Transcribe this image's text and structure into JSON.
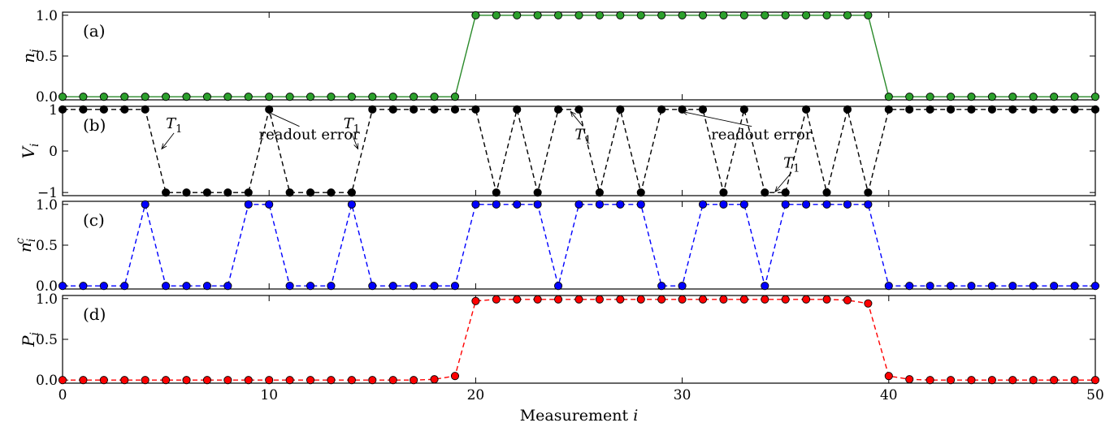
{
  "figure": {
    "xlabel": "Measurement i",
    "xlim": [
      0,
      50
    ],
    "xticks": [
      0,
      10,
      20,
      30,
      40,
      50
    ],
    "annotation_arrow_color": "#000000"
  },
  "chart_data": [
    {
      "type": "line",
      "panel_label": "(a)",
      "ylabel": "n_i",
      "ylim": [
        0,
        1
      ],
      "yticks": [
        0.0,
        0.5,
        1.0
      ],
      "ytick_labels": [
        "0.0",
        "0.5",
        "1.0"
      ],
      "line_style": "solid",
      "color": "#2a8a2a",
      "marker_color": "#2ca02c",
      "x": [
        0,
        1,
        2,
        3,
        4,
        5,
        6,
        7,
        8,
        9,
        10,
        11,
        12,
        13,
        14,
        15,
        16,
        17,
        18,
        19,
        20,
        21,
        22,
        23,
        24,
        25,
        26,
        27,
        28,
        29,
        30,
        31,
        32,
        33,
        34,
        35,
        36,
        37,
        38,
        39,
        40,
        41,
        42,
        43,
        44,
        45,
        46,
        47,
        48,
        49,
        50
      ],
      "values": [
        0,
        0,
        0,
        0,
        0,
        0,
        0,
        0,
        0,
        0,
        0,
        0,
        0,
        0,
        0,
        0,
        0,
        0,
        0,
        0,
        1,
        1,
        1,
        1,
        1,
        1,
        1,
        1,
        1,
        1,
        1,
        1,
        1,
        1,
        1,
        1,
        1,
        1,
        1,
        1,
        0,
        0,
        0,
        0,
        0,
        0,
        0,
        0,
        0,
        0,
        0
      ],
      "annotations": []
    },
    {
      "type": "line",
      "panel_label": "(b)",
      "ylabel": "V_i",
      "ylim": [
        -1,
        1
      ],
      "yticks": [
        -1,
        0,
        1
      ],
      "ytick_labels": [
        "−1",
        "0",
        "1"
      ],
      "line_style": "dashed",
      "color": "#000000",
      "marker_color": "#000000",
      "x": [
        0,
        1,
        2,
        3,
        4,
        5,
        6,
        7,
        8,
        9,
        10,
        11,
        12,
        13,
        14,
        15,
        16,
        17,
        18,
        19,
        20,
        21,
        22,
        23,
        24,
        25,
        26,
        27,
        28,
        29,
        30,
        31,
        32,
        33,
        34,
        35,
        36,
        37,
        38,
        39,
        40,
        41,
        42,
        43,
        44,
        45,
        46,
        47,
        48,
        49,
        50
      ],
      "values": [
        1,
        1,
        1,
        1,
        1,
        -1,
        -1,
        -1,
        -1,
        -1,
        1,
        -1,
        -1,
        -1,
        -1,
        1,
        1,
        1,
        1,
        1,
        1,
        -1,
        1,
        -1,
        1,
        1,
        -1,
        1,
        -1,
        1,
        1,
        1,
        -1,
        1,
        -1,
        -1,
        1,
        -1,
        1,
        -1,
        1,
        1,
        1,
        1,
        1,
        1,
        1,
        1,
        1,
        1,
        1
      ],
      "annotations": [
        {
          "text": "T1",
          "main": "T",
          "sub": "1",
          "italic": true,
          "text_x": 5.0,
          "text_y": 0.55,
          "arrow_to_x": 4.8,
          "arrow_to_y": 0.05
        },
        {
          "text": "readout error",
          "main": "readout error",
          "sub": "",
          "italic": false,
          "text_x": 9.5,
          "text_y": 0.28,
          "arrow_to_x": 9.9,
          "arrow_to_y": 0.95
        },
        {
          "text": "T1",
          "main": "T",
          "sub": "1",
          "italic": true,
          "text_x": 13.6,
          "text_y": 0.55,
          "arrow_to_x": 14.3,
          "arrow_to_y": 0.05
        },
        {
          "text": "T1",
          "main": "T",
          "sub": "1",
          "italic": true,
          "text_x": 24.8,
          "text_y": 0.28,
          "arrow_to_x": 24.6,
          "arrow_to_y": 0.95
        },
        {
          "text": "readout error",
          "main": "readout error",
          "sub": "",
          "italic": false,
          "text_x": 31.4,
          "text_y": 0.28,
          "arrow_to_x": 30.0,
          "arrow_to_y": 0.95
        },
        {
          "text": "T1",
          "main": "T",
          "sub": "1",
          "italic": true,
          "text_x": 34.9,
          "text_y": -0.4,
          "arrow_to_x": 34.5,
          "arrow_to_y": -0.98
        }
      ]
    },
    {
      "type": "line",
      "panel_label": "(c)",
      "ylabel": "n_i^c",
      "ylim": [
        0,
        1
      ],
      "yticks": [
        0.0,
        0.5,
        1.0
      ],
      "ytick_labels": [
        "0.0",
        "0.5",
        "1.0"
      ],
      "line_style": "dashed",
      "color": "#0000ff",
      "marker_color": "#0000ff",
      "x": [
        0,
        1,
        2,
        3,
        4,
        5,
        6,
        7,
        8,
        9,
        10,
        11,
        12,
        13,
        14,
        15,
        16,
        17,
        18,
        19,
        20,
        21,
        22,
        23,
        24,
        25,
        26,
        27,
        28,
        29,
        30,
        31,
        32,
        33,
        34,
        35,
        36,
        37,
        38,
        39,
        40,
        41,
        42,
        43,
        44,
        45,
        46,
        47,
        48,
        49,
        50
      ],
      "values": [
        0,
        0,
        0,
        0,
        1,
        0,
        0,
        0,
        0,
        1,
        1,
        0,
        0,
        0,
        1,
        0,
        0,
        0,
        0,
        0,
        1,
        1,
        1,
        1,
        0,
        1,
        1,
        1,
        1,
        0,
        0,
        1,
        1,
        1,
        0,
        1,
        1,
        1,
        1,
        1,
        0,
        0,
        0,
        0,
        0,
        0,
        0,
        0,
        0,
        0,
        0
      ],
      "annotations": []
    },
    {
      "type": "line",
      "panel_label": "(d)",
      "ylabel": "P_i",
      "ylim": [
        0,
        1
      ],
      "yticks": [
        0.0,
        0.5,
        1.0
      ],
      "ytick_labels": [
        "0.0",
        "0.5",
        "1.0"
      ],
      "line_style": "dashed",
      "color": "#ff0000",
      "marker_color": "#ff0000",
      "x": [
        0,
        1,
        2,
        3,
        4,
        5,
        6,
        7,
        8,
        9,
        10,
        11,
        12,
        13,
        14,
        15,
        16,
        17,
        18,
        19,
        20,
        21,
        22,
        23,
        24,
        25,
        26,
        27,
        28,
        29,
        30,
        31,
        32,
        33,
        34,
        35,
        36,
        37,
        38,
        39,
        40,
        41,
        42,
        43,
        44,
        45,
        46,
        47,
        48,
        49,
        50
      ],
      "values": [
        0,
        0,
        0,
        0,
        0,
        0,
        0,
        0,
        0,
        0,
        0,
        0,
        0,
        0,
        0,
        0,
        0,
        0,
        0.01,
        0.05,
        0.97,
        0.99,
        0.99,
        0.99,
        0.99,
        0.99,
        0.99,
        0.99,
        0.99,
        0.99,
        0.99,
        0.99,
        0.99,
        0.99,
        0.99,
        0.99,
        0.99,
        0.99,
        0.98,
        0.94,
        0.05,
        0.01,
        0,
        0,
        0,
        0,
        0,
        0,
        0,
        0,
        0
      ],
      "annotations": []
    }
  ]
}
